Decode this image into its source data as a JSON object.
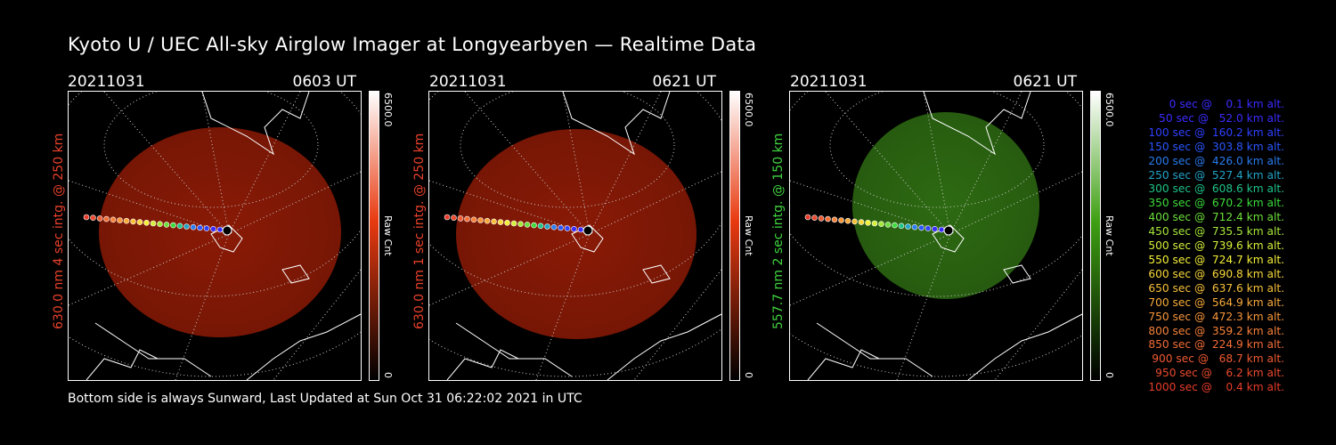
{
  "title": "Kyoto U / UEC All-sky Airglow Imager at Longyearbyen — Realtime Data",
  "footer": "Bottom side is always Sunward, Last Updated at Sun Oct 31 06:22:02 2021 in UTC",
  "panels": [
    {
      "date": "20211031",
      "time": "0603 UT",
      "ylabel": "630.0 nm 4 sec intg. @ 250 km",
      "label_color": "#e8412a",
      "cbar_max": "6500.0",
      "cbar_min": "0",
      "cbar_unit": "Raw Cnt",
      "cbar_color": "#e83a10",
      "image_color": "#8a1a06"
    },
    {
      "date": "20211031",
      "time": "0621 UT",
      "ylabel": "630.0 nm 1 sec intg. @ 250 km",
      "label_color": "#e8412a",
      "cbar_max": "6500.0",
      "cbar_min": "0",
      "cbar_unit": "Raw Cnt",
      "cbar_color": "#e83a10",
      "image_color": "#8a1a06"
    },
    {
      "date": "20211031",
      "time": "0621 UT",
      "ylabel": "557.7 nm 2 sec intg. @ 150 km",
      "label_color": "#3fd43f",
      "cbar_max": "6500.0",
      "cbar_min": "0",
      "cbar_unit": "Raw Cnt",
      "cbar_color": "#3ea012",
      "image_color": "#2d6a12"
    }
  ],
  "legend": [
    {
      "text": "   0 sec @    0.1 km alt.",
      "color": "#3a2cff"
    },
    {
      "text": "  50 sec @   52.0 km alt.",
      "color": "#3a2cff"
    },
    {
      "text": " 100 sec @  160.2 km alt.",
      "color": "#2f40ff"
    },
    {
      "text": " 150 sec @  303.8 km alt.",
      "color": "#2a56ff"
    },
    {
      "text": " 200 sec @  426.0 km alt.",
      "color": "#2a7cf0"
    },
    {
      "text": " 250 sec @  527.4 km alt.",
      "color": "#22a4c8"
    },
    {
      "text": " 300 sec @  608.6 km alt.",
      "color": "#1ec48a"
    },
    {
      "text": " 350 sec @  670.2 km alt.",
      "color": "#3cdc3c"
    },
    {
      "text": " 400 sec @  712.4 km alt.",
      "color": "#6ce03a"
    },
    {
      "text": " 450 sec @  735.5 km alt.",
      "color": "#a6e83a"
    },
    {
      "text": " 500 sec @  739.6 km alt.",
      "color": "#d4ee3a"
    },
    {
      "text": " 550 sec @  724.7 km alt.",
      "color": "#f4f03a"
    },
    {
      "text": " 600 sec @  690.8 km alt.",
      "color": "#f8d83a"
    },
    {
      "text": " 650 sec @  637.6 km alt.",
      "color": "#f8c03a"
    },
    {
      "text": " 700 sec @  564.9 km alt.",
      "color": "#f8aa3a"
    },
    {
      "text": " 750 sec @  472.3 km alt.",
      "color": "#f8963a"
    },
    {
      "text": " 800 sec @  359.2 km alt.",
      "color": "#f8823a"
    },
    {
      "text": " 850 sec @  224.9 km alt.",
      "color": "#f46e36"
    },
    {
      "text": " 900 sec @   68.7 km alt.",
      "color": "#f05a32"
    },
    {
      "text": " 950 sec @    6.2 km alt.",
      "color": "#ec4a2e"
    },
    {
      "text": "1000 sec @    0.4 km alt.",
      "color": "#e83c2a"
    }
  ]
}
